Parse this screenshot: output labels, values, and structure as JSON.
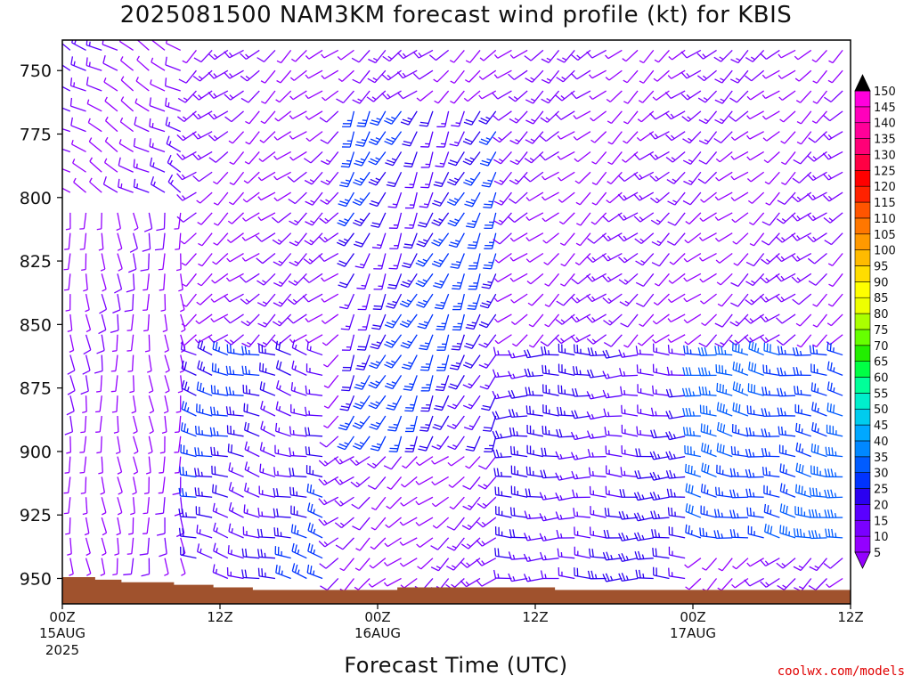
{
  "title": "2025081500 NAM3KM forecast wind profile (kt) for KBIS",
  "credit": "coolwx.com/models",
  "colors": {
    "ground": "#a0522d",
    "frame": "#000000",
    "background": "#ffffff"
  },
  "chart_data": {
    "type": "wind_barb_time_height",
    "title": "2025081500 NAM3KM forecast wind profile (kt) for KBIS",
    "xlabel": "Forecast Time (UTC)",
    "ylabel": "",
    "y_axis": {
      "range": [
        738,
        960
      ],
      "ticks": [
        750,
        775,
        800,
        825,
        850,
        875,
        900,
        925,
        950
      ],
      "tick_labels": [
        "750",
        "775",
        "800",
        "825",
        "850",
        "875",
        "900",
        "925",
        "950"
      ],
      "inverted": true
    },
    "x_axis": {
      "range_hours": [
        0,
        60
      ],
      "ticks": [
        0,
        12,
        24,
        36,
        48,
        60
      ],
      "tick_labels": [
        {
          "time": "00Z",
          "date": "15AUG",
          "year": "2025"
        },
        {
          "time": "12Z",
          "date": "",
          "year": ""
        },
        {
          "time": "00Z",
          "date": "16AUG",
          "year": ""
        },
        {
          "time": "12Z",
          "date": "",
          "year": ""
        },
        {
          "time": "00Z",
          "date": "17AUG",
          "year": ""
        },
        {
          "time": "12Z",
          "date": "",
          "year": ""
        }
      ]
    },
    "surface_pressure": [
      [
        0,
        949.5
      ],
      [
        2.5,
        950.5
      ],
      [
        4.5,
        951.5
      ],
      [
        8.5,
        952.5
      ],
      [
        11.5,
        953.5
      ],
      [
        14.5,
        954.5
      ],
      [
        25.5,
        953.5
      ],
      [
        37.5,
        954.5
      ],
      [
        60,
        953.5
      ]
    ],
    "colorbar": {
      "unit": "kt",
      "levels": [
        5,
        10,
        15,
        20,
        25,
        30,
        35,
        40,
        45,
        50,
        55,
        60,
        65,
        70,
        75,
        80,
        85,
        90,
        95,
        100,
        105,
        110,
        115,
        120,
        125,
        130,
        135,
        140,
        145,
        150
      ],
      "colors": [
        "#9400ff",
        "#7a00ff",
        "#5a00ff",
        "#2a00f0",
        "#0033ff",
        "#005cff",
        "#0088ff",
        "#00a8ff",
        "#00ccee",
        "#00eecc",
        "#00ff99",
        "#00ff44",
        "#22ee00",
        "#66ff00",
        "#aaff00",
        "#eeff00",
        "#ffff00",
        "#ffdd00",
        "#ffbb00",
        "#ff9900",
        "#ff7700",
        "#ff5500",
        "#ff2200",
        "#ff0000",
        "#ff0044",
        "#ff0077",
        "#ff0099",
        "#ff00bb",
        "#ff00dd",
        "#ff00ff"
      ]
    },
    "wind_field": {
      "time_step_hours": 1,
      "pressure_step_hpa": 8,
      "note_regimes": [
        {
          "times": [
            0,
            9
          ],
          "pressures": [
            738,
            800
          ],
          "speed_kt": 12,
          "dir_deg": 300
        },
        {
          "times": [
            0,
            9
          ],
          "pressures": [
            800,
            950
          ],
          "speed_kt": 6,
          "dir_deg": 175
        },
        {
          "times": [
            10,
            20
          ],
          "pressures": [
            860,
            950
          ],
          "speed_kt": 22,
          "dir_deg": 285
        },
        {
          "times": [
            22,
            34
          ],
          "pressures": [
            760,
            900
          ],
          "speed_kt": 24,
          "dir_deg": 205
        },
        {
          "times": [
            34,
            48
          ],
          "pressures": [
            860,
            950
          ],
          "speed_kt": 20,
          "dir_deg": 270
        },
        {
          "times": [
            48,
            60
          ],
          "pressures": [
            860,
            940
          ],
          "speed_kt": 30,
          "dir_deg": 280
        }
      ]
    }
  }
}
